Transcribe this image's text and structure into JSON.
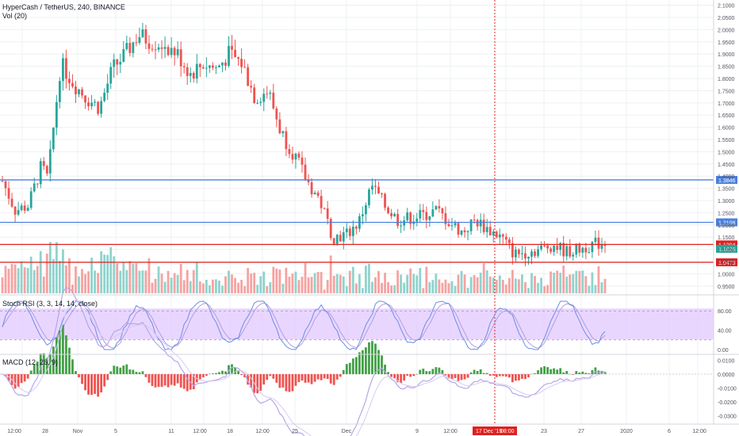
{
  "header": {
    "symbol": "HyperCash / TetherUS, 240, BINANCE",
    "volume_label": "Vol (20)"
  },
  "indicators": {
    "stoch_label": "Stoch RSI (3, 3, 14, 14, close)",
    "macd_label": "MACD (12, 26, 9)"
  },
  "colors": {
    "up": "#26a69a",
    "down": "#ef5350",
    "vol_up": "#8fd3cc",
    "vol_down": "#f5a3a1",
    "blue_line": "#4a7fdc",
    "red_line": "#e02020",
    "stoch_band": "#e1c8ff",
    "stoch_k": "#6a8ee6",
    "stoch_d": "#b39ddb",
    "macd_pos": "#43a047",
    "macd_neg": "#ef5350",
    "macd_line": "#b7a6e8",
    "crosshair": "#e02020",
    "grid": "#eef0f3"
  },
  "chart_data": [
    {
      "type": "candlestick",
      "title": "HyperCash / TetherUS, 240, BINANCE",
      "ylim": [
        0.93,
        2.105
      ],
      "y_ticks": [
        "2.1000",
        "2.0500",
        "2.0000",
        "1.9500",
        "1.9000",
        "1.8500",
        "1.8000",
        "1.7500",
        "1.7000",
        "1.6500",
        "1.6000",
        "1.5500",
        "1.5000",
        "1.4500",
        "1.4000",
        "1.3500",
        "1.3000",
        "1.2500",
        "1.2000",
        "1.1500",
        "1.1000",
        "1.0500",
        "1.0000",
        "0.9500"
      ],
      "x_ticks": [
        "12:00",
        "28",
        "Nov",
        "5",
        "11",
        "12:00",
        "18",
        "12:00",
        "25",
        "Dec",
        "9",
        "12:00",
        "17 Dec '19",
        "08:00",
        "23",
        "27",
        "2020",
        "6",
        "12:00"
      ],
      "price_path": [
        [
          0,
          1.38
        ],
        [
          2,
          1.26
        ],
        [
          4,
          1.28
        ],
        [
          6,
          1.44
        ],
        [
          7,
          1.39
        ],
        [
          9,
          1.86
        ],
        [
          11,
          1.78
        ],
        [
          13,
          1.72
        ],
        [
          15,
          1.68
        ],
        [
          17,
          1.84
        ],
        [
          19,
          1.9
        ],
        [
          21,
          1.98
        ],
        [
          23,
          1.95
        ],
        [
          25,
          1.94
        ],
        [
          27,
          1.9
        ],
        [
          29,
          1.82
        ],
        [
          31,
          1.86
        ],
        [
          33,
          1.84
        ],
        [
          35,
          1.9
        ],
        [
          37,
          1.86
        ],
        [
          39,
          1.72
        ],
        [
          41,
          1.75
        ],
        [
          43,
          1.58
        ],
        [
          45,
          1.49
        ],
        [
          47,
          1.38
        ],
        [
          49,
          1.3
        ],
        [
          51,
          1.15
        ],
        [
          53,
          1.16
        ],
        [
          55,
          1.21
        ],
        [
          57,
          1.36
        ],
        [
          59,
          1.28
        ],
        [
          61,
          1.22
        ],
        [
          63,
          1.23
        ],
        [
          65,
          1.24
        ],
        [
          67,
          1.26
        ],
        [
          69,
          1.21
        ],
        [
          71,
          1.17
        ],
        [
          73,
          1.22
        ],
        [
          75,
          1.18
        ],
        [
          77,
          1.15
        ],
        [
          79,
          1.08
        ],
        [
          81,
          1.09
        ],
        [
          83,
          1.1
        ],
        [
          85,
          1.12
        ],
        [
          87,
          1.09
        ],
        [
          89,
          1.1
        ],
        [
          91,
          1.12
        ],
        [
          93,
          1.13
        ]
      ],
      "annotations": {
        "horizontal_levels": [
          {
            "value": 1.3846,
            "label": "1.3846",
            "color": "#4a7fdc"
          },
          {
            "value": 1.2108,
            "label": "1.2108",
            "color": "#4a7fdc"
          },
          {
            "value": 1.1204,
            "label": "1.1204",
            "color": "#e02020"
          },
          {
            "value": 1.0473,
            "label": "1.0473",
            "color": "#e02020"
          }
        ],
        "last_price": {
          "value": 1.1025,
          "label": "1.1025",
          "color": "#26a69a"
        },
        "crosshair_date": "17 Dec '19",
        "crosshair_time": "08:00"
      }
    },
    {
      "type": "line",
      "title": "Stoch RSI (3, 3, 14, 14, close)",
      "ylim": [
        -5,
        105
      ],
      "y_ticks": [
        "80.00",
        "40.00",
        "0.00"
      ],
      "band": [
        20,
        80
      ]
    },
    {
      "type": "bar",
      "title": "MACD (12, 26, 9)",
      "ylim": [
        -0.035,
        0.012
      ],
      "y_ticks": [
        "0.0100",
        "0.0000",
        "-0.0100",
        "-0.0200",
        "-0.0300"
      ]
    }
  ]
}
